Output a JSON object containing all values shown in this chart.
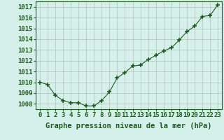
{
  "x": [
    0,
    1,
    2,
    3,
    4,
    5,
    6,
    7,
    8,
    9,
    10,
    11,
    12,
    13,
    14,
    15,
    16,
    17,
    18,
    19,
    20,
    21,
    22,
    23
  ],
  "y": [
    1010.0,
    1009.8,
    1008.8,
    1008.3,
    1008.1,
    1008.1,
    1007.8,
    1007.8,
    1008.3,
    1009.1,
    1010.4,
    1010.9,
    1011.5,
    1011.6,
    1012.1,
    1012.5,
    1012.9,
    1013.2,
    1013.9,
    1014.7,
    1015.2,
    1016.1,
    1016.2,
    1017.2
  ],
  "line_color": "#1a5c1a",
  "marker": "+",
  "marker_color": "#1a5c1a",
  "marker_size": 5,
  "marker_linewidth": 1.2,
  "bg_color": "#d5f0eb",
  "grid_color": "#b8c8c0",
  "xlabel": "Graphe pression niveau de la mer (hPa)",
  "xlabel_color": "#1a5c1a",
  "xlabel_fontsize": 7.5,
  "xtick_labels": [
    "0",
    "1",
    "2",
    "3",
    "4",
    "5",
    "6",
    "7",
    "8",
    "9",
    "10",
    "11",
    "12",
    "13",
    "14",
    "15",
    "16",
    "17",
    "18",
    "19",
    "20",
    "21",
    "22",
    "23"
  ],
  "ylim": [
    1007.5,
    1017.5
  ],
  "yticks": [
    1008,
    1009,
    1010,
    1011,
    1012,
    1013,
    1014,
    1015,
    1016,
    1017
  ],
  "tick_color": "#1a5c1a",
  "tick_fontsize": 6.5,
  "spine_color": "#1a5c1a"
}
